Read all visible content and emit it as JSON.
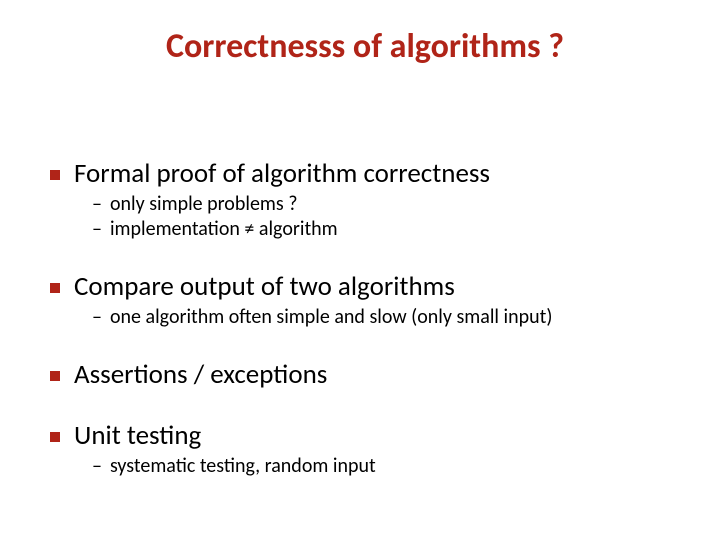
{
  "colors": {
    "title": "#b02418",
    "bullet": "#b02418",
    "main_text": "#000000",
    "sub_text": "#000000",
    "dash": "#000000",
    "background": "#ffffff"
  },
  "fonts": {
    "title_size": 34,
    "main_size": 27,
    "sub_size": 20,
    "title_weight": 700,
    "main_weight": 400,
    "sub_weight": 400
  },
  "bullet": {
    "size": 10
  },
  "title": "Correctnesss of algorithms ?",
  "items": [
    {
      "text": "Formal proof of algorithm correctness",
      "subs": [
        "only simple problems ?",
        "implementation ≠ algorithm"
      ]
    },
    {
      "text": "Compare output of two algorithms",
      "subs": [
        "one algorithm often simple and slow (only small input)"
      ]
    },
    {
      "text": "Assertions / exceptions",
      "subs": []
    },
    {
      "text": "Unit testing",
      "subs": [
        "systematic testing, random input"
      ]
    }
  ]
}
